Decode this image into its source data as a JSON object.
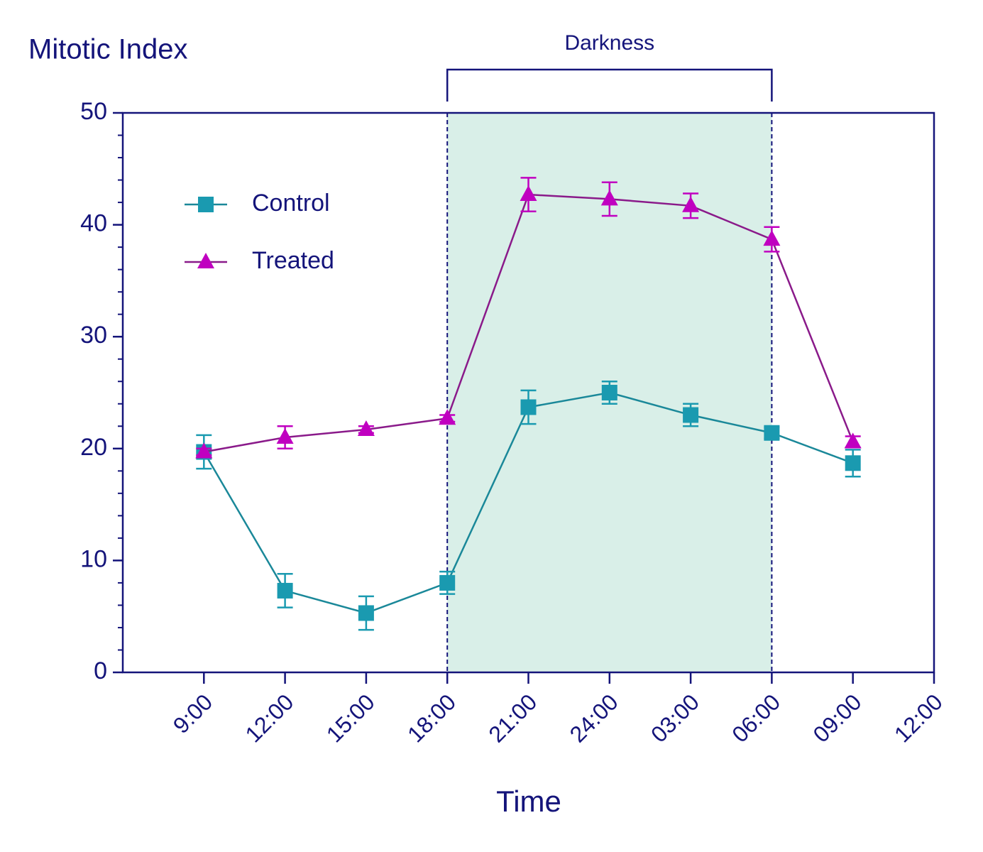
{
  "chart_data": {
    "type": "line",
    "title": "Mitotic Index",
    "x_label": "Time",
    "categories": [
      "9:00",
      "12:00",
      "15:00",
      "18:00",
      "21:00",
      "24:00",
      "03:00",
      "06:00",
      "09:00",
      "12:00"
    ],
    "series": [
      {
        "name": "Control",
        "color": "#1a9ab0",
        "line_color": "#1a8899",
        "marker": "square",
        "values": [
          19.7,
          7.3,
          5.3,
          8.0,
          23.7,
          25.0,
          23.0,
          21.4,
          18.7,
          null
        ],
        "errors": [
          1.5,
          1.5,
          1.5,
          1.0,
          1.5,
          1.0,
          1.0,
          0.5,
          1.2,
          null
        ]
      },
      {
        "name": "Treated",
        "color": "#c000c0",
        "line_color": "#8a1a8a",
        "marker": "triangle",
        "values": [
          19.7,
          21.0,
          21.7,
          22.7,
          42.7,
          42.3,
          41.7,
          38.7,
          20.6,
          null
        ],
        "errors": [
          0.3,
          1.0,
          0.3,
          0.3,
          1.5,
          1.5,
          1.1,
          1.1,
          0.5,
          null
        ]
      }
    ],
    "ylim": [
      0,
      50
    ],
    "yticks": [
      0,
      10,
      20,
      30,
      40,
      50
    ],
    "yminor_step": 2,
    "shaded_region": {
      "label": "Darkness",
      "start": "18:00",
      "end": "06:00",
      "color": "#d9efe8"
    },
    "legend": "upper left"
  }
}
